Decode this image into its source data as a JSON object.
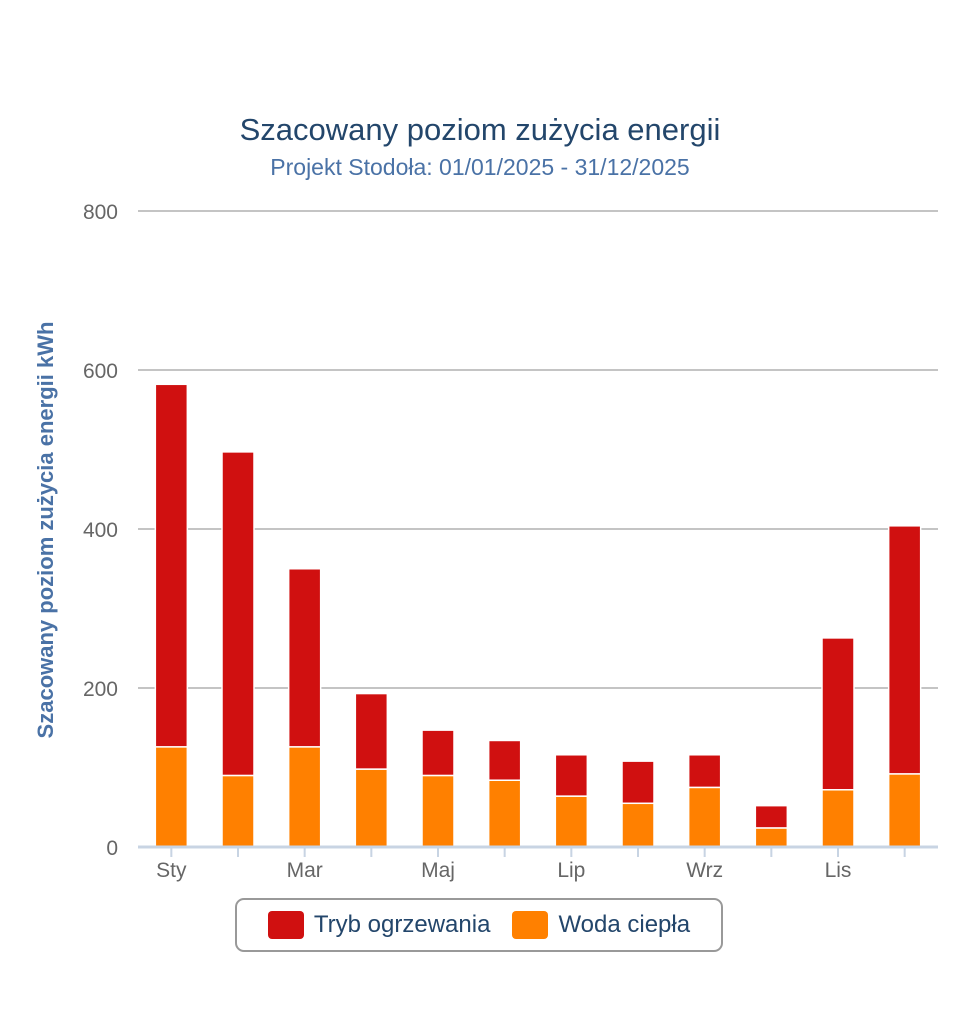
{
  "chart_data": {
    "type": "bar",
    "stacked": true,
    "title": "Szacowany poziom zużycia energii",
    "subtitle": "Projekt Stodoła: 01/01/2025 - 31/12/2025",
    "ylabel": "Szacowany poziom zużycia energii kWh",
    "xlabel": "",
    "ylim": [
      0,
      800
    ],
    "yticks": [
      0,
      200,
      400,
      600,
      800
    ],
    "grid": true,
    "legend_position": "bottom",
    "tick_labels": [
      "Sty",
      "",
      "Mar",
      "",
      "Maj",
      "",
      "Lip",
      "",
      "Wrz",
      "",
      "Lis",
      ""
    ],
    "series": [
      {
        "name": "Woda ciepła",
        "color": "#ff8000",
        "values": [
          126,
          90,
          126,
          98,
          90,
          84,
          64,
          55,
          75,
          24,
          72,
          92
        ]
      },
      {
        "name": "Tryb ogrzewania",
        "color": "#d01010",
        "values": [
          456,
          407,
          224,
          95,
          57,
          50,
          52,
          53,
          41,
          28,
          191,
          312
        ]
      }
    ]
  },
  "legend": {
    "items": [
      {
        "label": "Tryb ogrzewania",
        "color": "#d01010"
      },
      {
        "label": "Woda ciepła",
        "color": "#ff8000"
      }
    ]
  }
}
